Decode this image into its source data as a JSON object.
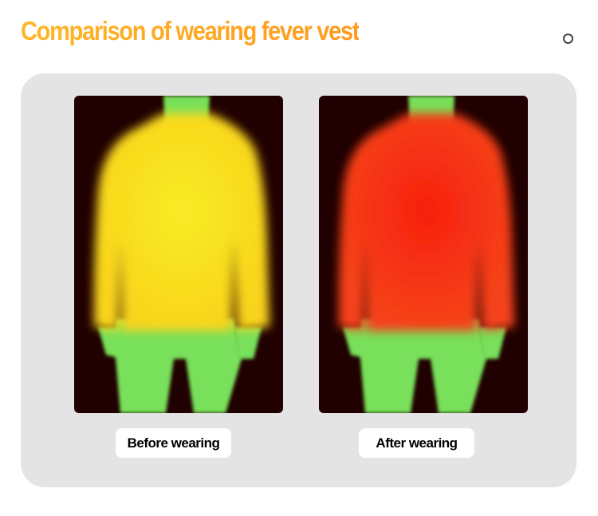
{
  "title": "Comparison of wearing fever vest",
  "panels": [
    {
      "label": "Before wearing",
      "label_color": "#3d3f4a",
      "shirt_color": "#f9d41a",
      "shirt_center": "#f8ec26"
    },
    {
      "label": "After wearing",
      "label_color": "#ff1a0a",
      "shirt_color": "#f5431a",
      "shirt_center": "#f8200e"
    }
  ],
  "colors": {
    "title": "#ffa820",
    "card": "#e4e4e4",
    "panel_bg": "#200000",
    "body_cool": "#78e05a"
  }
}
